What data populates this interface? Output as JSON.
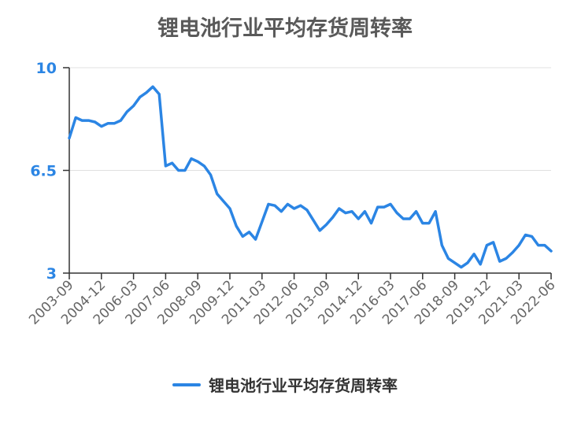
{
  "chart_data": {
    "type": "line",
    "title": "锂电池行业平均存货周转率",
    "xlabel": "",
    "ylabel": "",
    "ylim": [
      3,
      10
    ],
    "yticks": [
      3,
      6.5,
      10
    ],
    "grid": true,
    "legend_position": "bottom",
    "x_tick_labels": [
      "2003-09",
      "2004-12",
      "2006-03",
      "2007-06",
      "2008-09",
      "2009-12",
      "2011-03",
      "2012-06",
      "2013-09",
      "2014-12",
      "2016-03",
      "2017-06",
      "2018-09",
      "2019-12",
      "2021-03",
      "2022-06"
    ],
    "series": [
      {
        "name": "锂电池行业平均存货周转率",
        "color": "#2b85e4",
        "x": [
          "2003-09",
          "2003-12",
          "2004-03",
          "2004-06",
          "2004-09",
          "2004-12",
          "2005-03",
          "2005-06",
          "2005-09",
          "2005-12",
          "2006-03",
          "2006-06",
          "2006-09",
          "2006-12",
          "2007-03",
          "2007-06",
          "2007-09",
          "2007-12",
          "2008-03",
          "2008-06",
          "2008-09",
          "2008-12",
          "2009-03",
          "2009-06",
          "2009-09",
          "2009-12",
          "2010-03",
          "2010-06",
          "2010-09",
          "2010-12",
          "2011-03",
          "2011-06",
          "2011-09",
          "2011-12",
          "2012-03",
          "2012-06",
          "2012-09",
          "2012-12",
          "2013-03",
          "2013-06",
          "2013-09",
          "2013-12",
          "2014-03",
          "2014-06",
          "2014-09",
          "2014-12",
          "2015-03",
          "2015-06",
          "2015-09",
          "2015-12",
          "2016-03",
          "2016-06",
          "2016-09",
          "2016-12",
          "2017-03",
          "2017-06",
          "2017-09",
          "2017-12",
          "2018-03",
          "2018-06",
          "2018-09",
          "2018-12",
          "2019-03",
          "2019-06",
          "2019-09",
          "2019-12",
          "2020-03",
          "2020-06",
          "2020-09",
          "2020-12",
          "2021-03",
          "2021-06",
          "2021-09",
          "2021-12",
          "2022-03",
          "2022-06"
        ],
        "values": [
          7.6,
          8.3,
          8.2,
          8.2,
          8.15,
          8.0,
          8.1,
          8.1,
          8.2,
          8.5,
          8.7,
          9.0,
          9.15,
          9.35,
          9.1,
          6.65,
          6.75,
          6.5,
          6.5,
          6.9,
          6.8,
          6.65,
          6.35,
          5.7,
          5.45,
          5.2,
          4.6,
          4.25,
          4.4,
          4.15,
          4.75,
          5.35,
          5.3,
          5.1,
          5.35,
          5.2,
          5.3,
          5.15,
          4.8,
          4.45,
          4.65,
          4.9,
          5.2,
          5.05,
          5.1,
          4.85,
          5.1,
          4.7,
          5.25,
          5.25,
          5.35,
          5.05,
          4.85,
          4.85,
          5.1,
          4.7,
          4.7,
          5.1,
          3.95,
          3.5,
          3.35,
          3.2,
          3.35,
          3.65,
          3.3,
          3.95,
          4.05,
          3.4,
          3.5,
          3.7,
          3.95,
          4.3,
          4.25,
          3.95,
          3.95,
          3.75
        ]
      }
    ]
  },
  "legend": {
    "label": "锂电池行业平均存货周转率"
  }
}
